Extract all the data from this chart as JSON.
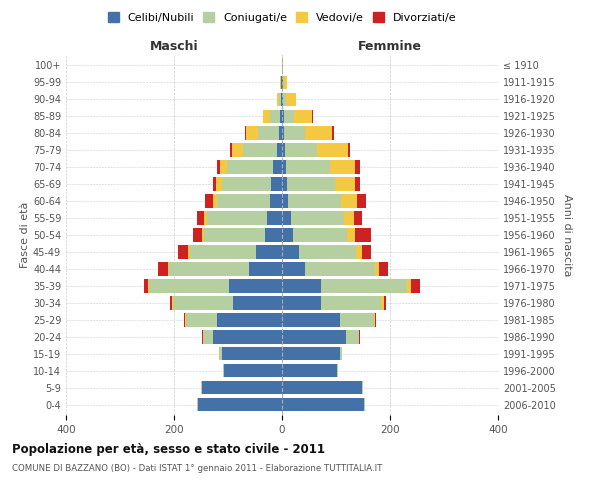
{
  "age_groups": [
    "0-4",
    "5-9",
    "10-14",
    "15-19",
    "20-24",
    "25-29",
    "30-34",
    "35-39",
    "40-44",
    "45-49",
    "50-54",
    "55-59",
    "60-64",
    "65-69",
    "70-74",
    "75-79",
    "80-84",
    "85-89",
    "90-94",
    "95-99",
    "100+"
  ],
  "birth_years": [
    "2006-2010",
    "2001-2005",
    "1996-2000",
    "1991-1995",
    "1986-1990",
    "1981-1985",
    "1976-1980",
    "1971-1975",
    "1966-1970",
    "1961-1965",
    "1956-1960",
    "1951-1955",
    "1946-1950",
    "1941-1945",
    "1936-1940",
    "1931-1935",
    "1926-1930",
    "1921-1925",
    "1916-1920",
    "1911-1915",
    "≤ 1910"
  ],
  "colors": {
    "celibi": "#4472a8",
    "coniugati": "#b5cfa0",
    "vedovi": "#f5c842",
    "divorziati": "#cc2222"
  },
  "maschi": {
    "celibi": [
      155,
      148,
      108,
      112,
      128,
      120,
      90,
      98,
      62,
      48,
      32,
      27,
      22,
      20,
      16,
      10,
      6,
      4,
      2,
      1,
      0
    ],
    "coniugati": [
      2,
      2,
      2,
      4,
      18,
      58,
      112,
      148,
      148,
      122,
      112,
      112,
      98,
      92,
      85,
      62,
      38,
      18,
      4,
      1,
      0
    ],
    "vedovi": [
      0,
      0,
      0,
      0,
      0,
      1,
      2,
      2,
      2,
      4,
      4,
      6,
      8,
      10,
      14,
      20,
      22,
      14,
      4,
      2,
      0
    ],
    "divorziati": [
      0,
      0,
      0,
      0,
      2,
      2,
      4,
      8,
      18,
      18,
      16,
      12,
      14,
      6,
      6,
      4,
      2,
      0,
      0,
      0,
      0
    ]
  },
  "femmine": {
    "celibi": [
      152,
      148,
      102,
      108,
      118,
      108,
      72,
      72,
      42,
      32,
      20,
      16,
      12,
      10,
      8,
      6,
      4,
      4,
      2,
      2,
      0
    ],
    "coniugati": [
      2,
      2,
      2,
      4,
      24,
      62,
      112,
      160,
      130,
      105,
      100,
      98,
      98,
      88,
      80,
      58,
      38,
      18,
      6,
      1,
      0
    ],
    "vedovi": [
      0,
      0,
      0,
      0,
      0,
      2,
      4,
      6,
      8,
      12,
      16,
      20,
      28,
      38,
      48,
      58,
      50,
      34,
      18,
      6,
      2
    ],
    "divorziati": [
      0,
      0,
      0,
      0,
      2,
      2,
      4,
      18,
      16,
      16,
      28,
      14,
      18,
      8,
      8,
      4,
      4,
      2,
      0,
      0,
      0
    ]
  },
  "xlim": 400,
  "title": "Popolazione per età, sesso e stato civile - 2011",
  "subtitle": "COMUNE DI BAZZANO (BO) - Dati ISTAT 1° gennaio 2011 - Elaborazione TUTTITALIA.IT",
  "ylabel_left": "Fasce di età",
  "ylabel_right": "Anni di nascita",
  "xlabel_left": "Maschi",
  "xlabel_right": "Femmine",
  "bg_color": "#ffffff",
  "grid_color": "#cccccc"
}
